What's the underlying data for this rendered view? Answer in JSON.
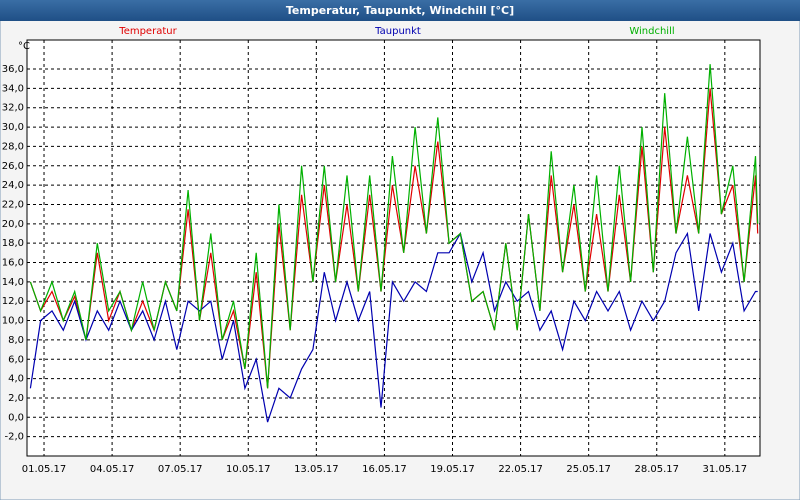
{
  "chart_data": {
    "type": "line",
    "title": "Temperatur, Taupunkt, Windchill [°C]",
    "y_unit": "°C",
    "x": [
      -0.6,
      -0.15,
      0.35,
      0.85,
      1.35,
      1.85,
      2.35,
      2.85,
      3.35,
      3.85,
      4.35,
      4.85,
      5.35,
      5.85,
      6.35,
      6.85,
      7.35,
      7.85,
      8.35,
      8.85,
      9.35,
      9.85,
      10.35,
      10.85,
      11.35,
      11.85,
      12.35,
      12.85,
      13.35,
      13.85,
      14.35,
      14.85,
      15.35,
      15.85,
      16.35,
      16.85,
      17.35,
      17.85,
      18.35,
      18.85,
      19.35,
      19.85,
      20.35,
      20.85,
      21.35,
      21.85,
      22.35,
      22.85,
      23.35,
      23.85,
      24.35,
      24.85,
      25.35,
      25.85,
      26.35,
      26.85,
      27.35,
      27.85,
      28.35,
      28.85,
      29.35,
      29.85,
      30.35,
      30.85,
      31.35,
      31.45
    ],
    "series": [
      {
        "name": "Temperatur",
        "color": "#e00000",
        "values": [
          14,
          11,
          13,
          10,
          12.5,
          8,
          17,
          10,
          13,
          9,
          12,
          9,
          14,
          11,
          21.5,
          10,
          17,
          8,
          11,
          5,
          15,
          3,
          20,
          9,
          23,
          14,
          24,
          14,
          22,
          13,
          23,
          13,
          24,
          17,
          26,
          19,
          28.5,
          18,
          19,
          12,
          13,
          9,
          18,
          9,
          21,
          11,
          25,
          15,
          22,
          13,
          21,
          13,
          23,
          14,
          28,
          15,
          30,
          19,
          25,
          19,
          34,
          21,
          24,
          14,
          25,
          19
        ]
      },
      {
        "name": "Taupunkt",
        "color": "#0000b0",
        "values": [
          3,
          10,
          11,
          9,
          12,
          8,
          11,
          9,
          12,
          9,
          11,
          8,
          12,
          7,
          12,
          11,
          12,
          6,
          10,
          3,
          6,
          -0.5,
          3,
          2,
          5,
          7,
          15,
          10,
          14,
          10,
          13,
          1,
          14,
          12,
          14,
          13,
          17,
          17,
          19,
          14,
          17,
          11,
          14,
          12,
          13,
          9,
          11,
          7,
          12,
          10,
          13,
          11,
          13,
          9,
          12,
          10,
          12,
          17,
          19,
          11,
          19,
          15,
          18,
          11,
          13,
          13
        ]
      },
      {
        "name": "Windchill",
        "color": "#00b000",
        "values": [
          14,
          11,
          14,
          10,
          13,
          8,
          18,
          11,
          13,
          9,
          14,
          9,
          14,
          11,
          23.5,
          10,
          19,
          8,
          12,
          5,
          17,
          3,
          22,
          9,
          26,
          14,
          26,
          14,
          25,
          13,
          25,
          13,
          27,
          17,
          30,
          19,
          31,
          18,
          19,
          12,
          13,
          9,
          18,
          9,
          21,
          11,
          27.5,
          15,
          24,
          13,
          25,
          13,
          26,
          14,
          30,
          15,
          33.5,
          19,
          29,
          19,
          36.5,
          21,
          26,
          14,
          27,
          20
        ]
      }
    ],
    "xlim": [
      -0.75,
      31.55
    ],
    "xticks": [
      {
        "value": 0,
        "label": "01.05.17"
      },
      {
        "value": 3,
        "label": "04.05.17"
      },
      {
        "value": 6,
        "label": "07.05.17"
      },
      {
        "value": 9,
        "label": "10.05.17"
      },
      {
        "value": 12,
        "label": "13.05.17"
      },
      {
        "value": 15,
        "label": "16.05.17"
      },
      {
        "value": 18,
        "label": "19.05.17"
      },
      {
        "value": 21,
        "label": "22.05.17"
      },
      {
        "value": 24,
        "label": "25.05.17"
      },
      {
        "value": 27,
        "label": "28.05.17"
      },
      {
        "value": 30,
        "label": "31.05.17"
      }
    ],
    "ylim": [
      -4,
      39
    ],
    "yticks": [
      {
        "value": -2,
        "label": "-2,0"
      },
      {
        "value": 0,
        "label": "0,0"
      },
      {
        "value": 2,
        "label": "2,0"
      },
      {
        "value": 4,
        "label": "4,0"
      },
      {
        "value": 6,
        "label": "6,0"
      },
      {
        "value": 8,
        "label": "8,0"
      },
      {
        "value": 10,
        "label": "10,0"
      },
      {
        "value": 12,
        "label": "12,0"
      },
      {
        "value": 14,
        "label": "14,0"
      },
      {
        "value": 16,
        "label": "16,0"
      },
      {
        "value": 18,
        "label": "18,0"
      },
      {
        "value": 20,
        "label": "20,0"
      },
      {
        "value": 22,
        "label": "22,0"
      },
      {
        "value": 24,
        "label": "24,0"
      },
      {
        "value": 26,
        "label": "26,0"
      },
      {
        "value": 28,
        "label": "28,0"
      },
      {
        "value": 30,
        "label": "30,0"
      },
      {
        "value": 32,
        "label": "32,0"
      },
      {
        "value": 34,
        "label": "34,0"
      },
      {
        "value": 36,
        "label": "36,0"
      }
    ],
    "grid": true
  }
}
